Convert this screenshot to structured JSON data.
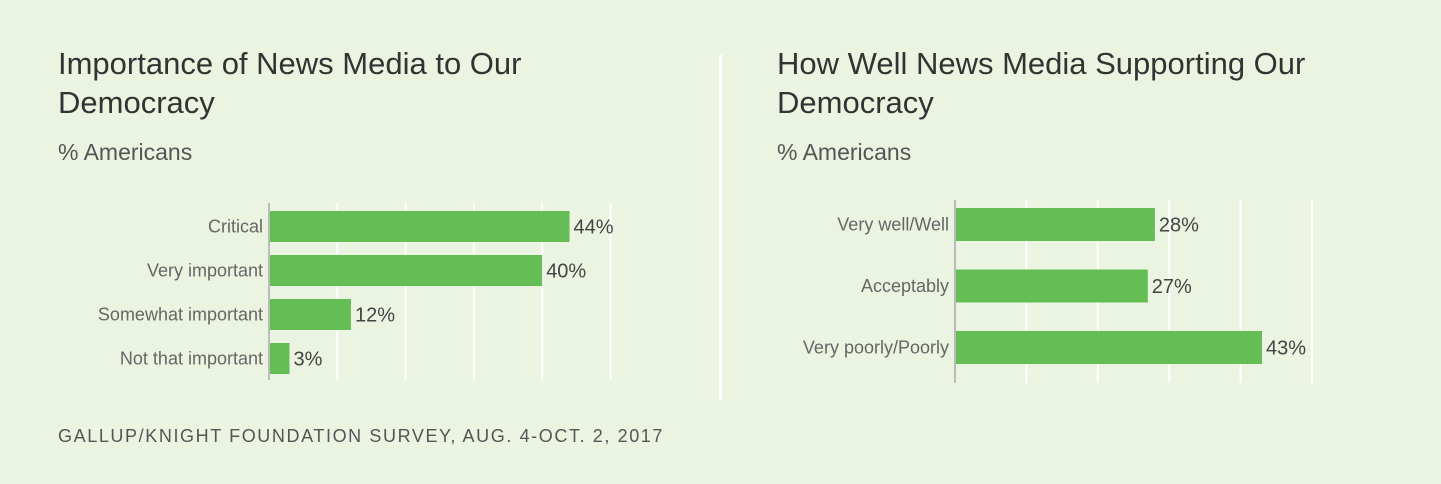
{
  "colors": {
    "bar": "#65bd55",
    "background": "#ebf4e1",
    "grid": "#ffffff",
    "axis": "#bbbbbb"
  },
  "footer": "GALLUP/KNIGHT FOUNDATION SURVEY, AUG. 4-OCT. 2, 2017",
  "chart_data": [
    {
      "type": "bar",
      "orientation": "horizontal",
      "title": "Importance of News Media to Our Democracy",
      "subtitle": "% Americans",
      "categories": [
        "Critical",
        "Very important",
        "Somewhat important",
        "Not that important"
      ],
      "values": [
        44,
        40,
        12,
        3
      ],
      "labels": [
        "44%",
        "40%",
        "12%",
        "3%"
      ],
      "xlim": [
        0,
        50
      ],
      "grid": true
    },
    {
      "type": "bar",
      "orientation": "horizontal",
      "title": "How Well News Media Supporting Our Democracy",
      "subtitle": "% Americans",
      "categories": [
        "Very well/Well",
        "Acceptably",
        "Very poorly/Poorly"
      ],
      "values": [
        28,
        27,
        43
      ],
      "labels": [
        "28%",
        "27%",
        "43%"
      ],
      "xlim": [
        0,
        50
      ],
      "grid": true
    }
  ]
}
